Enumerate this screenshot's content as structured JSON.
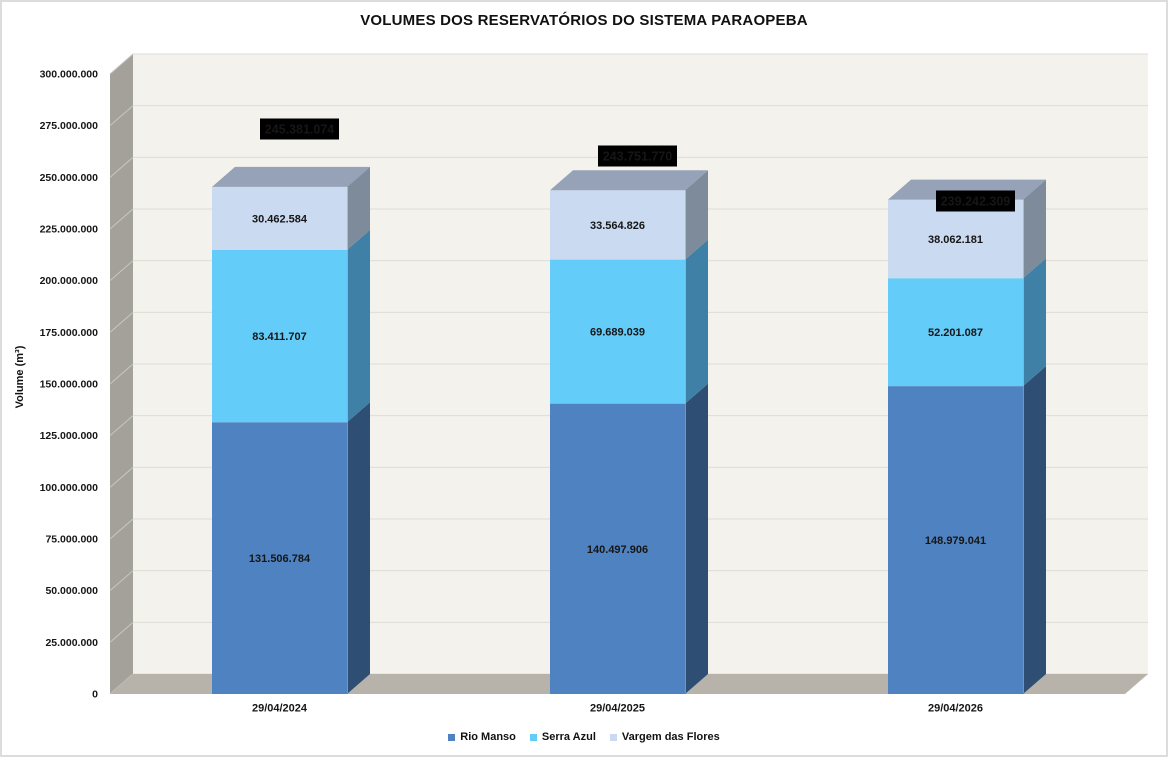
{
  "window": {
    "background": "#ffffff",
    "border_color": "#dcdcdc"
  },
  "chart_data": {
    "type": "bar",
    "variant": "3d-stacked-column",
    "title": "VOLUMES DOS RESERVATÓRIOS DO SISTEMA PARAOPEBA",
    "xlabel": "",
    "ylabel": "Volume (m³)",
    "categories": [
      "29/04/2024",
      "29/04/2025",
      "29/04/2026"
    ],
    "series": [
      {
        "name": "Rio Manso",
        "color": "#4f82c0",
        "side_color": "#2f4e74",
        "values": [
          131506784,
          140497906,
          148979041
        ]
      },
      {
        "name": "Serra Azul",
        "color": "#63ccf8",
        "side_color": "#3f80a6",
        "values": [
          83411707,
          69689039,
          52201087
        ]
      },
      {
        "name": "Vargem das Flores",
        "color": "#cadaf0",
        "side_color": "#7e8b9b",
        "values": [
          30462584,
          33564826,
          38062181
        ]
      }
    ],
    "totals": [
      245381074,
      243751770,
      239242309
    ],
    "total_label_style": {
      "background": "#000000",
      "text_color": "#ffffff"
    },
    "ylim": [
      0,
      300000000
    ],
    "ytick_step": 25000000,
    "yticks": [
      "0",
      "25.000.000",
      "50.000.000",
      "75.000.000",
      "100.000.000",
      "125.000.000",
      "150.000.000",
      "175.000.000",
      "200.000.000",
      "225.000.000",
      "250.000.000",
      "275.000.000",
      "300.000.000"
    ],
    "grid": true,
    "legend_position": "bottom",
    "number_format": "thousands-dot",
    "colors": {
      "back_wall": "#f4f2ed",
      "side_wall": "#a4a19b",
      "wall_diagonal": "#c9c6c0",
      "floor": "#b7b3ab",
      "gridline": "#dfdcd6",
      "bar_top": "#95a2b7",
      "label_text": "#161616"
    }
  }
}
